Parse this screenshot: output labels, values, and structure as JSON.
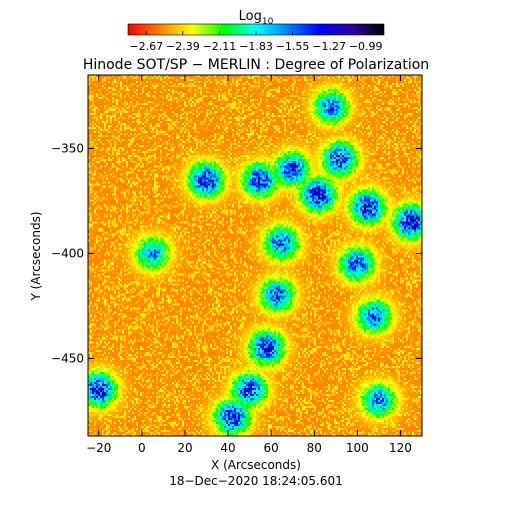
{
  "chart_data": {
    "type": "heatmap",
    "title": "Hinode SOT/SP − MERLIN : Degree of Polarization",
    "xlabel": "X (Arcseconds)",
    "ylabel": "Y (Arcseconds)",
    "timestamp": "18−Dec−2020 18:24:05.601",
    "xlim": [
      -25,
      130
    ],
    "ylim": [
      -487,
      -315
    ],
    "x_ticks": [
      -20,
      0,
      20,
      40,
      60,
      80,
      100,
      120
    ],
    "x_tick_labels": [
      "−20",
      "0",
      "20",
      "40",
      "60",
      "80",
      "100",
      "120"
    ],
    "y_ticks": [
      -350,
      -400,
      -450
    ],
    "y_tick_labels": [
      "−350",
      "−400",
      "−450"
    ],
    "colorbar": {
      "label_base": "Log",
      "label_sub": "10",
      "range": [
        -2.81,
        -0.85
      ],
      "tick_values": [
        -2.67,
        -2.39,
        -2.11,
        -1.83,
        -1.55,
        -1.27,
        -0.99
      ],
      "tick_labels": [
        "−2.67",
        "−2.39",
        "−2.11",
        "−1.83",
        "−1.55",
        "−1.27",
        "−0.99"
      ],
      "colormap_stops": [
        "#ff0000",
        "#ff8000",
        "#ffff00",
        "#00ff00",
        "#00ffff",
        "#0080ff",
        "#0000ff",
        "#3000a0",
        "#000000"
      ]
    },
    "background_level": -2.55,
    "network_features": [
      {
        "x": 30,
        "y": -365,
        "peak": -1.1
      },
      {
        "x": 55,
        "y": -365,
        "peak": -1.15
      },
      {
        "x": 70,
        "y": -360,
        "peak": -1.2
      },
      {
        "x": 82,
        "y": -372,
        "peak": -1.05
      },
      {
        "x": 92,
        "y": -355,
        "peak": -1.2
      },
      {
        "x": 105,
        "y": -378,
        "peak": -1.1
      },
      {
        "x": 125,
        "y": -385,
        "peak": -1.05
      },
      {
        "x": 65,
        "y": -395,
        "peak": -1.3
      },
      {
        "x": 63,
        "y": -420,
        "peak": -1.35
      },
      {
        "x": 58,
        "y": -445,
        "peak": -1.15
      },
      {
        "x": 50,
        "y": -465,
        "peak": -1.2
      },
      {
        "x": 42,
        "y": -478,
        "peak": -1.1
      },
      {
        "x": 100,
        "y": -405,
        "peak": -1.3
      },
      {
        "x": 108,
        "y": -430,
        "peak": -1.35
      },
      {
        "x": -20,
        "y": -465,
        "peak": -1.1
      },
      {
        "x": 88,
        "y": -330,
        "peak": -1.4
      },
      {
        "x": 5,
        "y": -400,
        "peak": -1.5
      },
      {
        "x": 110,
        "y": -470,
        "peak": -1.4
      }
    ],
    "grid": false
  }
}
